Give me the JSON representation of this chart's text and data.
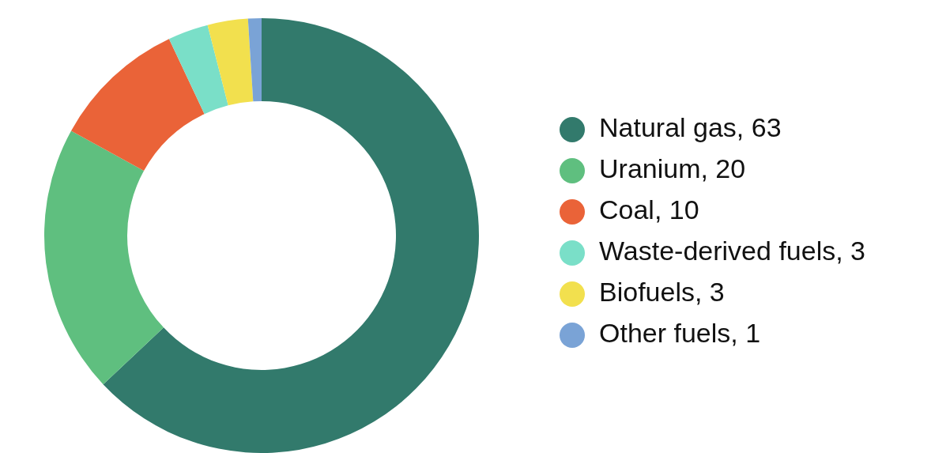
{
  "chart_data": {
    "type": "donut",
    "categories": [
      "Natural gas, 63",
      "Uranium, 20",
      "Coal, 10",
      "Waste-derived fuels, 3",
      "Biofuels, 3",
      "Other fuels, 1"
    ],
    "values": [
      63,
      20,
      10,
      3,
      3,
      1
    ],
    "colors": [
      "#327a6c",
      "#5fbf7f",
      "#ea6338",
      "#7adfc8",
      "#f2e04e",
      "#7aa3d6"
    ],
    "legend": "right"
  }
}
